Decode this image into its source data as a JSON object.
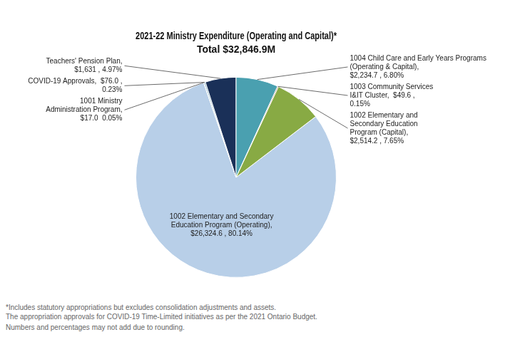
{
  "chart_data": {
    "type": "pie",
    "title": "2021-22 Ministry Expenditure (Operating and Capital)*",
    "subtitle": "Total $32,846.9M",
    "categories": [
      "1002 Elementary and Secondary\nEducation Program (Operating),\n$26,324.6 , 80.14%",
      "1001 Ministry\nAdministration Program,\n$17.0  0.05%",
      "COVID-19 Approvals,  $76.0 ,\n0.23%",
      "Teachers' Pension Plan,\n$1,631 , 4.97%",
      "1004 Child Care and Early Years Programs\n(Operating & Capital),\n$2,234.7 , 6.80%",
      "1003 Community Services\nI&IT Cluster,  $49.6 ,\n0.15%",
      "1002 Elementary and\nSecondary Education\nProgram (Capital),\n$2,514.2 , 7.65%"
    ],
    "values": [
      26324.6,
      17.0,
      76.0,
      1631.0,
      2234.7,
      49.6,
      2514.2
    ],
    "colors": [
      "#b8cfe8",
      "#e8c840",
      "#8ab4c8",
      "#1a3058",
      "#4aa0b0",
      "#703010",
      "#88aa44"
    ],
    "annotations": [
      "*Includes statutory appropriations but excludes consolidation adjustments and assets.\nThe appropriation approvals for COVID-19 Time-Limited initiatives as per the 2021 Ontario Budget.",
      "Numbers and percentages may not add due to rounding."
    ]
  }
}
